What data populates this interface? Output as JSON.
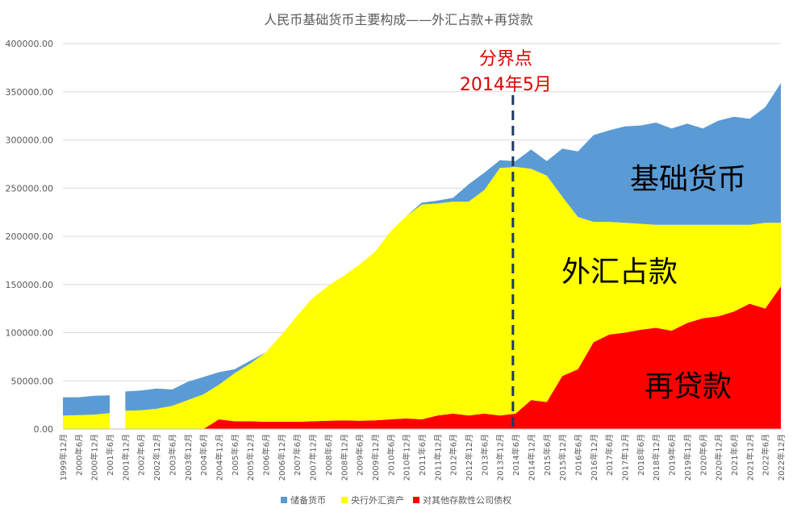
{
  "chart_data": {
    "type": "area",
    "stacked": true,
    "title": "人民币基础货币主要构成——外汇占款+再贷款",
    "ylim": [
      0,
      400000
    ],
    "yticks": [
      "0.00",
      "50000.00",
      "100000.00",
      "150000.00",
      "200000.00",
      "250000.00",
      "300000.00",
      "350000.00",
      "400000.00"
    ],
    "ytick_values": [
      0,
      50000,
      100000,
      150000,
      200000,
      250000,
      300000,
      350000,
      400000
    ],
    "xticks": [
      "1999年12月",
      "2000年6月",
      "2000年12月",
      "2001年6月",
      "2001年12月",
      "2002年6月",
      "2002年12月",
      "2003年6月",
      "2003年12月",
      "2004年6月",
      "2004年12月",
      "2005年6月",
      "2005年12月",
      "2006年6月",
      "2006年12月",
      "2007年6月",
      "2007年12月",
      "2008年6月",
      "2008年12月",
      "2009年6月",
      "2009年12月",
      "2010年6月",
      "2010年12月",
      "2011年6月",
      "2011年12月",
      "2012年6月",
      "2012年12月",
      "2013年6月",
      "2013年12月",
      "2014年6月",
      "2014年12月",
      "2015年6月",
      "2015年12月",
      "2016年6月",
      "2016年12月",
      "2017年6月",
      "2017年12月",
      "2018年6月",
      "2018年12月",
      "2019年6月",
      "2019年12月",
      "2020年6月",
      "2020年12月",
      "2021年6月",
      "2021年12月",
      "2022年6月",
      "2022年12月"
    ],
    "x_time": [
      1999.917,
      2000.417,
      2000.917,
      2001.417,
      2001.917,
      2002.417,
      2002.917,
      2003.417,
      2003.917,
      2004.417,
      2004.917,
      2005.417,
      2005.917,
      2006.417,
      2006.917,
      2007.417,
      2007.917,
      2008.417,
      2008.917,
      2009.417,
      2009.917,
      2010.417,
      2010.917,
      2011.417,
      2011.917,
      2012.417,
      2012.917,
      2013.417,
      2013.917,
      2014.417,
      2014.917,
      2015.417,
      2015.917,
      2016.417,
      2016.917,
      2017.417,
      2017.917,
      2018.417,
      2018.917,
      2019.417,
      2019.917,
      2020.417,
      2020.917,
      2021.417,
      2021.917,
      2022.417,
      2022.917
    ],
    "gap_after_index": 3,
    "series": [
      {
        "name": "对其他存款性公司债权",
        "color": "#ff0000",
        "values": [
          0,
          0,
          0,
          0,
          0,
          0,
          0,
          0,
          0,
          0,
          10000,
          8000,
          8000,
          7500,
          7500,
          7500,
          8000,
          8500,
          9000,
          8500,
          9000,
          10000,
          11000,
          10000,
          14000,
          16000,
          14000,
          16000,
          14000,
          16000,
          30000,
          28000,
          55000,
          62000,
          90000,
          98000,
          100000,
          103000,
          105000,
          102000,
          110000,
          115000,
          117000,
          122000,
          130000,
          125000,
          148000
        ]
      },
      {
        "name": "央行外汇资产",
        "color": "#ffff00",
        "values": [
          14000,
          14500,
          15000,
          16500,
          19000,
          19500,
          21000,
          24000,
          30000,
          36000,
          36000,
          50000,
          60000,
          72000,
          90000,
          110000,
          128000,
          140000,
          150000,
          162000,
          175000,
          195000,
          210000,
          223000,
          220000,
          220000,
          222000,
          232000,
          257000,
          256000,
          240000,
          235000,
          186000,
          158000,
          125000,
          117000,
          114000,
          110000,
          107000,
          110000,
          102000,
          97000,
          95000,
          90000,
          82000,
          89000,
          66000
        ]
      },
      {
        "name": "储备货币",
        "color": "#5b9bd5",
        "values": [
          19000,
          18500,
          19500,
          18500,
          20000,
          20500,
          21000,
          17000,
          19000,
          18000,
          13000,
          4000,
          3000,
          0,
          0,
          0,
          0,
          0,
          0,
          0,
          0,
          0,
          0,
          2000,
          3000,
          4000,
          18000,
          18000,
          8000,
          6000,
          20000,
          15000,
          50000,
          68000,
          90000,
          95000,
          100000,
          102000,
          106000,
          100000,
          105000,
          100000,
          108000,
          112000,
          110000,
          120000,
          145000
        ]
      }
    ],
    "legend": [
      "储备货币",
      "央行外汇资产",
      "对其他存款性公司债权"
    ],
    "legend_position": "bottom",
    "annotations": {
      "divider_label_1": "分界点",
      "divider_label_2": "2014年5月",
      "divider_x": 2014.333,
      "region_base_money": "基础货币",
      "region_fx": "外汇占款",
      "region_relending": "再贷款"
    }
  }
}
